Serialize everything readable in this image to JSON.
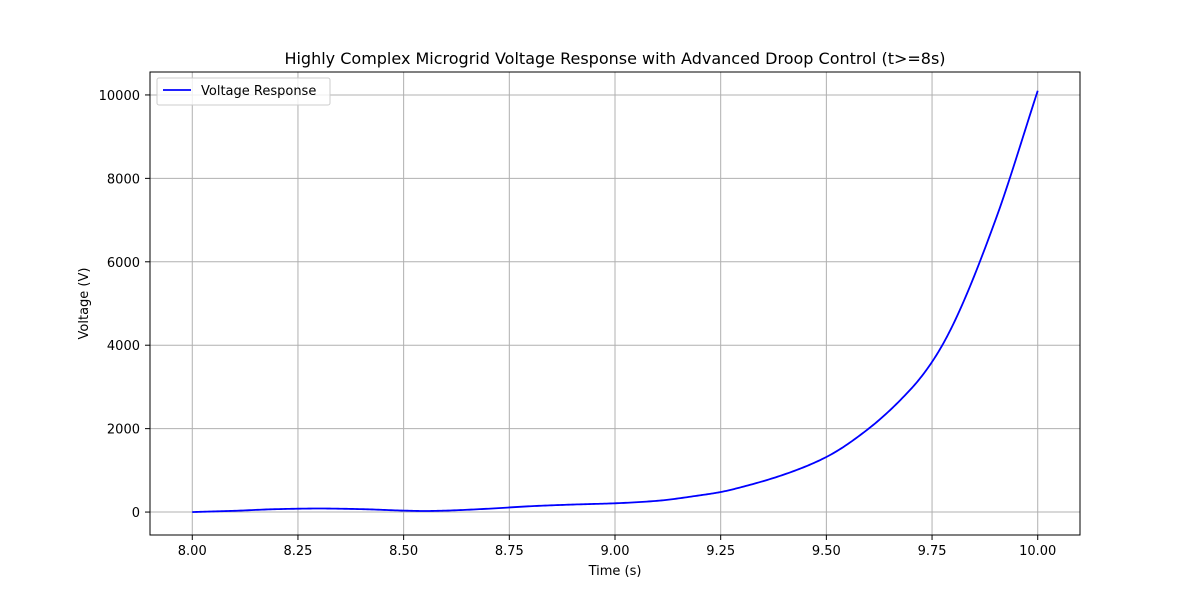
{
  "chart_data": {
    "type": "line",
    "title": "Highly Complex Microgrid Voltage Response with Advanced Droop Control (t>=8s)",
    "xlabel": "Time (s)",
    "ylabel": "Voltage (V)",
    "xlim": [
      7.9,
      10.1
    ],
    "ylim": [
      -550,
      10550
    ],
    "xticks": [
      8.0,
      8.25,
      8.5,
      8.75,
      9.0,
      9.25,
      9.5,
      9.75,
      10.0
    ],
    "xtick_labels": [
      "8.00",
      "8.25",
      "8.50",
      "8.75",
      "9.00",
      "9.25",
      "9.50",
      "9.75",
      "10.00"
    ],
    "yticks": [
      0,
      2000,
      4000,
      6000,
      8000,
      10000
    ],
    "ytick_labels": [
      "0",
      "2000",
      "4000",
      "6000",
      "8000",
      "10000"
    ],
    "grid": true,
    "legend_position": "top-left",
    "series": [
      {
        "name": "Voltage Response",
        "color": "#0000ff",
        "x": [
          8.0,
          8.1,
          8.2,
          8.3,
          8.4,
          8.5,
          8.55,
          8.6,
          8.7,
          8.8,
          8.9,
          9.0,
          9.1,
          9.2,
          9.25,
          9.3,
          9.4,
          9.5,
          9.6,
          9.7,
          9.75,
          9.8,
          9.9,
          10.0
        ],
        "y": [
          0,
          30,
          70,
          85,
          70,
          35,
          25,
          35,
          80,
          140,
          180,
          210,
          270,
          400,
          480,
          600,
          900,
          1320,
          2000,
          2950,
          3600,
          4500,
          7000,
          10100
        ]
      }
    ]
  }
}
